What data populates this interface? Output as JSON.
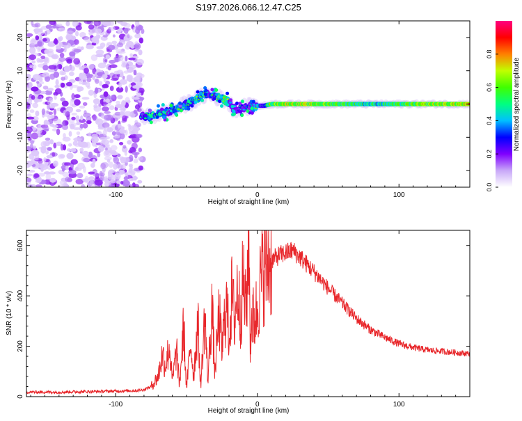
{
  "title": "S197.2026.066.12.47.C25",
  "chart_data": [
    {
      "type": "heatmap",
      "name": "spectrogram",
      "xlabel": "Height of straight line (km)",
      "ylabel": "Frequency (Hz)",
      "xlim": [
        -163,
        150
      ],
      "ylim": [
        -25,
        25
      ],
      "xticks": [
        -100,
        0,
        100
      ],
      "xtick_labels": [
        "-100",
        "0",
        "100"
      ],
      "yticks": [
        -20,
        -10,
        0,
        10,
        20
      ],
      "ytick_labels": [
        "-20",
        "-10",
        "0",
        "10",
        "20"
      ],
      "noise_region_x": [
        -163,
        -81
      ],
      "signal_path": {
        "x": [
          -82,
          -76,
          -70,
          -65,
          -60,
          -55,
          -50,
          -45,
          -40,
          -36,
          -32,
          -28,
          -25,
          -22,
          -20,
          -18,
          -15,
          -10,
          -5,
          0,
          5,
          10,
          20,
          40,
          60,
          80,
          100,
          120,
          150
        ],
        "y": [
          -3.5,
          -4,
          -3,
          -2.5,
          -2,
          -1,
          0,
          1,
          2,
          3,
          2.5,
          2,
          1.5,
          1,
          0.5,
          -1,
          -1.5,
          -1,
          -0.8,
          -0.5,
          -0.5,
          0,
          0,
          0,
          0,
          0,
          0,
          0,
          0
        ],
        "amplitude": [
          0.45,
          0.6,
          0.55,
          0.5,
          0.55,
          0.6,
          0.55,
          0.6,
          0.65,
          0.55,
          0.5,
          0.6,
          0.7,
          0.75,
          0.5,
          0.45,
          0.4,
          0.45,
          0.5,
          0.55,
          0.6,
          0.8,
          0.9,
          0.85,
          0.8,
          0.7,
          0.75,
          0.85,
          0.9
        ]
      },
      "colorbar": {
        "label": "Normalized spectral amplitude",
        "range": [
          0.0,
          1.0
        ],
        "ticks": [
          0.0,
          0.2,
          0.4,
          0.6,
          0.8
        ],
        "tick_labels": [
          "0.0",
          "0.2",
          "0.4",
          "0.6",
          "0.8"
        ],
        "colors": [
          "#ffffff",
          "#c8a8f8",
          "#8000ff",
          "#0000ff",
          "#00c0ff",
          "#00ff80",
          "#40ff00",
          "#c0ff00",
          "#ff8000",
          "#ff0000",
          "#ff0080"
        ]
      }
    },
    {
      "type": "line",
      "name": "snr",
      "xlabel": "Height of straight line (km)",
      "ylabel": "SNR (10 * v/v)",
      "xlim": [
        -163,
        150
      ],
      "ylim": [
        0,
        660
      ],
      "xticks": [
        -100,
        0,
        100
      ],
      "xtick_labels": [
        "-100",
        "0",
        "100"
      ],
      "yticks": [
        0,
        200,
        400,
        600
      ],
      "ytick_labels": [
        "0",
        "200",
        "400",
        "600"
      ],
      "series": [
        {
          "name": "SNR",
          "color": "#e8262a",
          "x": [
            -163,
            -140,
            -120,
            -100,
            -85,
            -80,
            -75,
            -70,
            -67,
            -65,
            -62,
            -60,
            -57,
            -55,
            -52,
            -50,
            -47,
            -45,
            -42,
            -40,
            -37,
            -35,
            -32,
            -30,
            -27,
            -25,
            -22,
            -20,
            -18,
            -16,
            -14,
            -12,
            -10,
            -8,
            -6,
            -5,
            -4,
            -2,
            0,
            3,
            6,
            10,
            15,
            20,
            25,
            30,
            40,
            50,
            60,
            70,
            80,
            90,
            100,
            110,
            120,
            130,
            140,
            150
          ],
          "y": [
            18,
            18,
            20,
            22,
            24,
            28,
            40,
            80,
            170,
            120,
            200,
            60,
            190,
            40,
            280,
            30,
            220,
            80,
            300,
            40,
            330,
            60,
            360,
            90,
            330,
            180,
            380,
            240,
            400,
            300,
            440,
            320,
            470,
            330,
            650,
            200,
            320,
            300,
            360,
            480,
            520,
            540,
            560,
            570,
            580,
            555,
            495,
            430,
            370,
            310,
            265,
            235,
            210,
            195,
            185,
            180,
            175,
            170
          ]
        }
      ]
    }
  ]
}
